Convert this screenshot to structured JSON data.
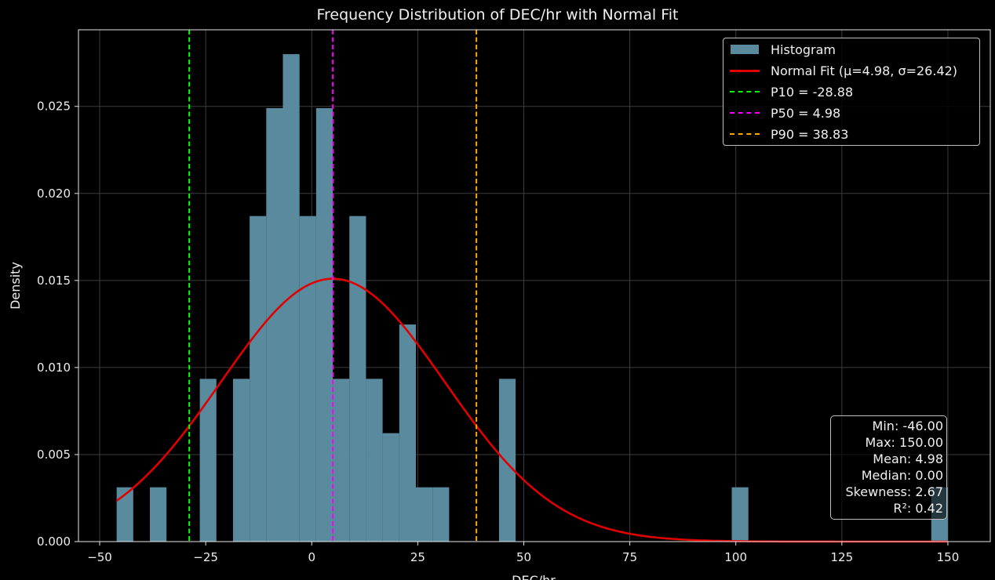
{
  "chart_data": {
    "type": "bar",
    "title": "Frequency Distribution of DEC/hr with Normal Fit",
    "xlabel": "DEC/hr",
    "ylabel": "Density",
    "xlim": [
      -55,
      160
    ],
    "ylim": [
      0,
      0.0294
    ],
    "grid": true,
    "legend_position": "top-right",
    "colors": {
      "background": "#000000",
      "histogram": "#5a8a9e",
      "normal_fit": "#e00000",
      "p10": "#00ff00",
      "p50": "#ff00ff",
      "p90": "#ffa500",
      "text": "#eeeeee",
      "grid": "#3c3c3c"
    },
    "x_ticks": [
      -50,
      -25,
      0,
      25,
      50,
      75,
      100,
      125,
      150
    ],
    "x_tick_labels": [
      "−50",
      "−25",
      "0",
      "25",
      "50",
      "75",
      "100",
      "125",
      "150"
    ],
    "y_ticks": [
      0,
      0.005,
      0.01,
      0.015,
      0.02,
      0.025
    ],
    "y_tick_labels": [
      "0.000",
      "0.005",
      "0.010",
      "0.015",
      "0.020",
      "0.025"
    ],
    "bins": {
      "start": -46,
      "width": 3.92,
      "densities": [
        0.00312,
        0,
        0.00312,
        0,
        0,
        0.00935,
        0,
        0.00935,
        0.0187,
        0.0249,
        0.028,
        0.0187,
        0.0249,
        0.00935,
        0.0187,
        0.00935,
        0.00623,
        0.01247,
        0.00312,
        0.00312,
        0,
        0,
        0,
        0.00935,
        0,
        0,
        0,
        0,
        0,
        0,
        0,
        0,
        0,
        0,
        0,
        0,
        0,
        0.00312,
        0,
        0,
        0,
        0,
        0,
        0,
        0,
        0,
        0,
        0,
        0,
        0.00312
      ]
    },
    "series": [
      {
        "name": "Histogram",
        "kind": "histogram"
      },
      {
        "name": "Normal Fit (μ=4.98, σ=26.42)",
        "kind": "line",
        "mu": 4.98,
        "sigma": 26.42,
        "x_range": [
          -46,
          150
        ]
      },
      {
        "name": "P10 = -28.88",
        "kind": "vline",
        "x": -28.88
      },
      {
        "name": "P50 = 4.98",
        "kind": "vline",
        "x": 4.98
      },
      {
        "name": "P90 = 38.83",
        "kind": "vline",
        "x": 38.83
      }
    ],
    "stats_box": [
      "Min: -46.00",
      "Max: 150.00",
      "Mean: 4.98",
      "Median: 0.00",
      "Skewness: 2.67",
      "R²: 0.42"
    ]
  }
}
